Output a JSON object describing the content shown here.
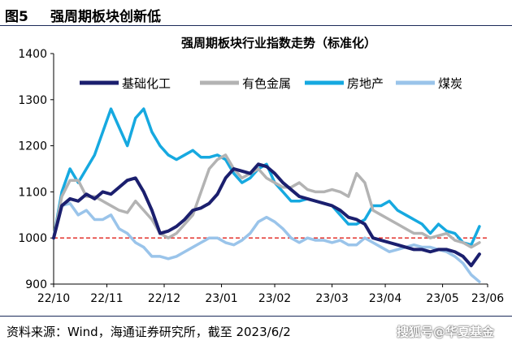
{
  "figure": {
    "label": "图5",
    "title": "强周期板块创新低",
    "source": "资料来源：Wind，海通证券研究所，截至 2023/6/2",
    "watermark": "搜狐号@华夏基金"
  },
  "chart_data": {
    "type": "line",
    "title": "强周期板块行业指数走势（标准化）",
    "xlabel": "",
    "ylabel": "",
    "ylim": [
      900,
      1400
    ],
    "yticks": [
      900,
      1000,
      1100,
      1200,
      1300,
      1400
    ],
    "xlim": [
      0,
      53
    ],
    "xticks": [
      {
        "pos": 0,
        "label": "22/10"
      },
      {
        "pos": 6.5,
        "label": "22/11"
      },
      {
        "pos": 13.5,
        "label": "22/12"
      },
      {
        "pos": 20.5,
        "label": "23/01"
      },
      {
        "pos": 27,
        "label": "23/02"
      },
      {
        "pos": 34,
        "label": "23/03"
      },
      {
        "pos": 40.5,
        "label": "23/04"
      },
      {
        "pos": 47.5,
        "label": "23/05"
      },
      {
        "pos": 53,
        "label": "23/06"
      }
    ],
    "reference_line": {
      "y": 1000,
      "color": "#e0201b",
      "style": "dashed"
    },
    "grid": false,
    "legend": "top",
    "series": [
      {
        "name": "基础化工",
        "color": "#1b1f6e",
        "values": [
          1000,
          1070,
          1085,
          1080,
          1095,
          1085,
          1100,
          1095,
          1110,
          1125,
          1130,
          1100,
          1060,
          1010,
          1015,
          1025,
          1040,
          1060,
          1065,
          1075,
          1095,
          1130,
          1150,
          1145,
          1140,
          1160,
          1155,
          1140,
          1120,
          1105,
          1090,
          1085,
          1080,
          1075,
          1070,
          1060,
          1045,
          1040,
          1030,
          1000,
          995,
          990,
          985,
          980,
          975,
          975,
          970,
          975,
          975,
          970,
          960,
          940,
          965
        ]
      },
      {
        "name": "有色金属",
        "color": "#b3b3b3",
        "values": [
          1000,
          1090,
          1125,
          1125,
          1090,
          1090,
          1080,
          1070,
          1060,
          1055,
          1080,
          1060,
          1040,
          1010,
          1000,
          1010,
          1030,
          1050,
          1100,
          1150,
          1170,
          1180,
          1150,
          1130,
          1140,
          1150,
          1130,
          1120,
          1110,
          1110,
          1120,
          1105,
          1100,
          1100,
          1105,
          1100,
          1090,
          1140,
          1120,
          1060,
          1050,
          1040,
          1030,
          1020,
          1010,
          1010,
          1000,
          1005,
          1010,
          995,
          990,
          980,
          990
        ]
      },
      {
        "name": "房地产",
        "color": "#16a9e0",
        "values": [
          1000,
          1100,
          1150,
          1120,
          1150,
          1180,
          1230,
          1280,
          1240,
          1200,
          1260,
          1280,
          1230,
          1200,
          1180,
          1170,
          1180,
          1190,
          1175,
          1175,
          1180,
          1170,
          1140,
          1120,
          1130,
          1150,
          1160,
          1120,
          1100,
          1080,
          1080,
          1085,
          1080,
          1075,
          1070,
          1050,
          1030,
          1030,
          1040,
          1070,
          1070,
          1080,
          1060,
          1050,
          1040,
          1030,
          1010,
          1030,
          1015,
          1010,
          990,
          985,
          1025
        ]
      },
      {
        "name": "煤炭",
        "color": "#9ac4ea",
        "values": [
          1000,
          1070,
          1075,
          1050,
          1060,
          1040,
          1040,
          1050,
          1020,
          1010,
          990,
          980,
          960,
          960,
          955,
          960,
          970,
          980,
          990,
          1000,
          1000,
          990,
          985,
          995,
          1010,
          1035,
          1045,
          1035,
          1020,
          1000,
          990,
          1000,
          995,
          995,
          990,
          995,
          985,
          985,
          1000,
          990,
          980,
          970,
          975,
          980,
          985,
          980,
          980,
          975,
          970,
          960,
          945,
          920,
          905
        ]
      }
    ]
  }
}
